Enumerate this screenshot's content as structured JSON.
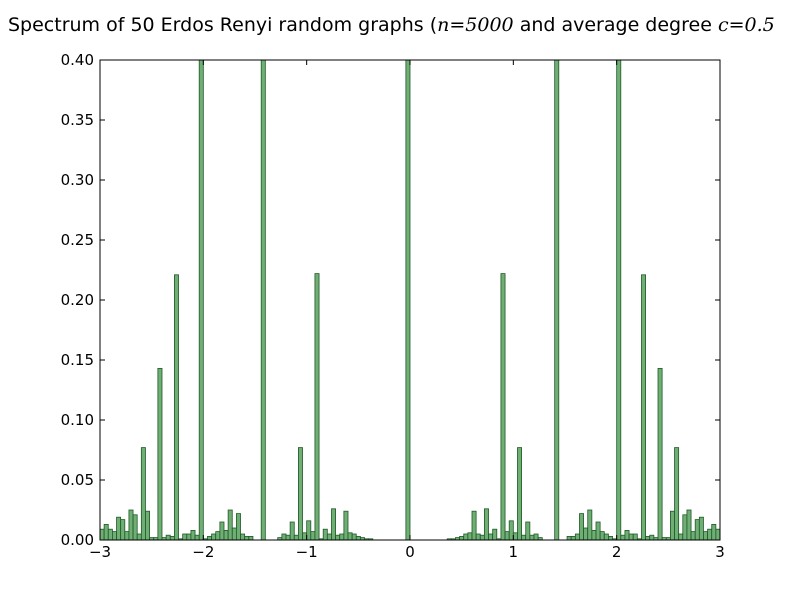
{
  "chart_data": {
    "type": "bar",
    "title_parts": {
      "prefix": "Spectrum of 50 Erdos Renyi random graphs (",
      "n_var": "n",
      "n_eq": "=5000",
      "middle": " and average degree ",
      "c_var": "c",
      "c_eq": "=0.5"
    },
    "xlabel": "",
    "ylabel": "",
    "xlim": [
      -3,
      3
    ],
    "ylim": [
      0,
      0.4
    ],
    "bin_width": 0.04,
    "bar_color": "#6fae74",
    "edge_color": "#1f5a26",
    "grid": false,
    "x_ticks": [
      -3,
      -2,
      -1,
      0,
      1,
      2,
      3
    ],
    "x_tick_labels": [
      "−3",
      "−2",
      "−1",
      "0",
      "1",
      "2",
      "3"
    ],
    "y_ticks": [
      0.0,
      0.05,
      0.1,
      0.15,
      0.2,
      0.25,
      0.3,
      0.35,
      0.4
    ],
    "y_tick_labels": [
      "0.00",
      "0.05",
      "0.10",
      "0.15",
      "0.20",
      "0.25",
      "0.30",
      "0.35",
      "0.40"
    ],
    "bars": [
      {
        "x": -2.98,
        "y": 0.009
      },
      {
        "x": -2.94,
        "y": 0.013
      },
      {
        "x": -2.9,
        "y": 0.009
      },
      {
        "x": -2.86,
        "y": 0.007
      },
      {
        "x": -2.82,
        "y": 0.019
      },
      {
        "x": -2.78,
        "y": 0.017
      },
      {
        "x": -2.74,
        "y": 0.007
      },
      {
        "x": -2.7,
        "y": 0.025
      },
      {
        "x": -2.66,
        "y": 0.021
      },
      {
        "x": -2.62,
        "y": 0.005
      },
      {
        "x": -2.58,
        "y": 0.077
      },
      {
        "x": -2.54,
        "y": 0.024
      },
      {
        "x": -2.5,
        "y": 0.002
      },
      {
        "x": -2.46,
        "y": 0.002
      },
      {
        "x": -2.42,
        "y": 0.143
      },
      {
        "x": -2.38,
        "y": 0.002
      },
      {
        "x": -2.34,
        "y": 0.004
      },
      {
        "x": -2.3,
        "y": 0.003
      },
      {
        "x": -2.26,
        "y": 0.221
      },
      {
        "x": -2.22,
        "y": 0.001
      },
      {
        "x": -2.18,
        "y": 0.005
      },
      {
        "x": -2.14,
        "y": 0.005
      },
      {
        "x": -2.1,
        "y": 0.008
      },
      {
        "x": -2.06,
        "y": 0.004
      },
      {
        "x": -2.02,
        "y": 0.4
      },
      {
        "x": -1.98,
        "y": 0.001
      },
      {
        "x": -1.94,
        "y": 0.003
      },
      {
        "x": -1.9,
        "y": 0.005
      },
      {
        "x": -1.86,
        "y": 0.007
      },
      {
        "x": -1.82,
        "y": 0.015
      },
      {
        "x": -1.78,
        "y": 0.008
      },
      {
        "x": -1.74,
        "y": 0.025
      },
      {
        "x": -1.7,
        "y": 0.01
      },
      {
        "x": -1.66,
        "y": 0.022
      },
      {
        "x": -1.62,
        "y": 0.005
      },
      {
        "x": -1.58,
        "y": 0.003
      },
      {
        "x": -1.54,
        "y": 0.003
      },
      {
        "x": -1.42,
        "y": 0.4
      },
      {
        "x": -1.26,
        "y": 0.002
      },
      {
        "x": -1.22,
        "y": 0.005
      },
      {
        "x": -1.18,
        "y": 0.004
      },
      {
        "x": -1.14,
        "y": 0.015
      },
      {
        "x": -1.1,
        "y": 0.004
      },
      {
        "x": -1.06,
        "y": 0.077
      },
      {
        "x": -1.02,
        "y": 0.006
      },
      {
        "x": -0.98,
        "y": 0.016
      },
      {
        "x": -0.94,
        "y": 0.007
      },
      {
        "x": -0.9,
        "y": 0.222
      },
      {
        "x": -0.86,
        "y": 0.001
      },
      {
        "x": -0.82,
        "y": 0.009
      },
      {
        "x": -0.78,
        "y": 0.005
      },
      {
        "x": -0.74,
        "y": 0.026
      },
      {
        "x": -0.7,
        "y": 0.004
      },
      {
        "x": -0.66,
        "y": 0.005
      },
      {
        "x": -0.62,
        "y": 0.024
      },
      {
        "x": -0.58,
        "y": 0.006
      },
      {
        "x": -0.54,
        "y": 0.005
      },
      {
        "x": -0.5,
        "y": 0.003
      },
      {
        "x": -0.46,
        "y": 0.002
      },
      {
        "x": -0.42,
        "y": 0.001
      },
      {
        "x": -0.38,
        "y": 0.001
      },
      {
        "x": -0.02,
        "y": 0.4
      },
      {
        "x": 0.38,
        "y": 0.001
      },
      {
        "x": 0.42,
        "y": 0.001
      },
      {
        "x": 0.46,
        "y": 0.002
      },
      {
        "x": 0.5,
        "y": 0.003
      },
      {
        "x": 0.54,
        "y": 0.005
      },
      {
        "x": 0.58,
        "y": 0.006
      },
      {
        "x": 0.62,
        "y": 0.024
      },
      {
        "x": 0.66,
        "y": 0.005
      },
      {
        "x": 0.7,
        "y": 0.004
      },
      {
        "x": 0.74,
        "y": 0.026
      },
      {
        "x": 0.78,
        "y": 0.005
      },
      {
        "x": 0.82,
        "y": 0.009
      },
      {
        "x": 0.86,
        "y": 0.001
      },
      {
        "x": 0.9,
        "y": 0.222
      },
      {
        "x": 0.94,
        "y": 0.007
      },
      {
        "x": 0.98,
        "y": 0.016
      },
      {
        "x": 1.02,
        "y": 0.006
      },
      {
        "x": 1.06,
        "y": 0.077
      },
      {
        "x": 1.1,
        "y": 0.004
      },
      {
        "x": 1.14,
        "y": 0.015
      },
      {
        "x": 1.18,
        "y": 0.004
      },
      {
        "x": 1.22,
        "y": 0.005
      },
      {
        "x": 1.26,
        "y": 0.002
      },
      {
        "x": 1.42,
        "y": 0.4
      },
      {
        "x": 1.54,
        "y": 0.003
      },
      {
        "x": 1.58,
        "y": 0.003
      },
      {
        "x": 1.62,
        "y": 0.005
      },
      {
        "x": 1.66,
        "y": 0.022
      },
      {
        "x": 1.7,
        "y": 0.01
      },
      {
        "x": 1.74,
        "y": 0.025
      },
      {
        "x": 1.78,
        "y": 0.008
      },
      {
        "x": 1.82,
        "y": 0.015
      },
      {
        "x": 1.86,
        "y": 0.007
      },
      {
        "x": 1.9,
        "y": 0.005
      },
      {
        "x": 1.94,
        "y": 0.003
      },
      {
        "x": 1.98,
        "y": 0.001
      },
      {
        "x": 2.02,
        "y": 0.4
      },
      {
        "x": 2.06,
        "y": 0.004
      },
      {
        "x": 2.1,
        "y": 0.008
      },
      {
        "x": 2.14,
        "y": 0.005
      },
      {
        "x": 2.18,
        "y": 0.005
      },
      {
        "x": 2.22,
        "y": 0.001
      },
      {
        "x": 2.26,
        "y": 0.221
      },
      {
        "x": 2.3,
        "y": 0.003
      },
      {
        "x": 2.34,
        "y": 0.004
      },
      {
        "x": 2.38,
        "y": 0.002
      },
      {
        "x": 2.42,
        "y": 0.143
      },
      {
        "x": 2.46,
        "y": 0.002
      },
      {
        "x": 2.5,
        "y": 0.002
      },
      {
        "x": 2.54,
        "y": 0.024
      },
      {
        "x": 2.58,
        "y": 0.077
      },
      {
        "x": 2.62,
        "y": 0.005
      },
      {
        "x": 2.66,
        "y": 0.021
      },
      {
        "x": 2.7,
        "y": 0.025
      },
      {
        "x": 2.74,
        "y": 0.007
      },
      {
        "x": 2.78,
        "y": 0.017
      },
      {
        "x": 2.82,
        "y": 0.019
      },
      {
        "x": 2.86,
        "y": 0.007
      },
      {
        "x": 2.9,
        "y": 0.009
      },
      {
        "x": 2.94,
        "y": 0.013
      },
      {
        "x": 2.98,
        "y": 0.009
      }
    ]
  }
}
